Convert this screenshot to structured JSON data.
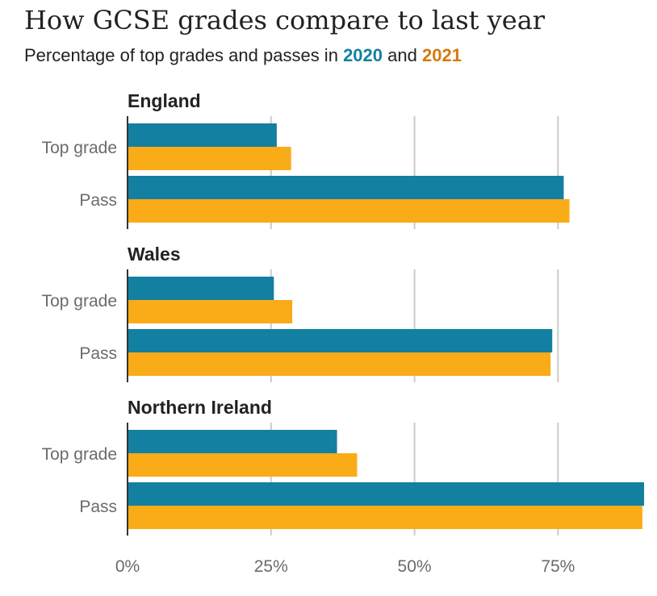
{
  "title": "How GCSE grades compare to last year",
  "subtitle": {
    "prefix": "Percentage of top grades and passes in",
    "year_a": "2020",
    "connector": "and",
    "year_b": "2021"
  },
  "colors": {
    "series_2020": "#1380A1",
    "series_2021": "#FAAB18"
  },
  "chart_data": {
    "type": "bar",
    "orientation": "horizontal",
    "grid": true,
    "xlim": [
      0,
      90
    ],
    "x_ticks": [
      0,
      25,
      50,
      75
    ],
    "x_tick_labels": [
      "0%",
      "25%",
      "50%",
      "75%"
    ],
    "categories": [
      "Top grade",
      "Pass"
    ],
    "series_names": [
      "2020",
      "2021"
    ],
    "groups": [
      {
        "name": "England",
        "series": [
          {
            "name": "2020",
            "values": [
              26,
              76
            ]
          },
          {
            "name": "2021",
            "values": [
              28.5,
              77
            ]
          }
        ]
      },
      {
        "name": "Wales",
        "series": [
          {
            "name": "2020",
            "values": [
              25.5,
              74
            ]
          },
          {
            "name": "2021",
            "values": [
              28.7,
              73.7
            ]
          }
        ]
      },
      {
        "name": "Northern Ireland",
        "series": [
          {
            "name": "2020",
            "values": [
              36.5,
              90
            ]
          },
          {
            "name": "2021",
            "values": [
              40,
              89.7
            ]
          }
        ]
      }
    ]
  }
}
